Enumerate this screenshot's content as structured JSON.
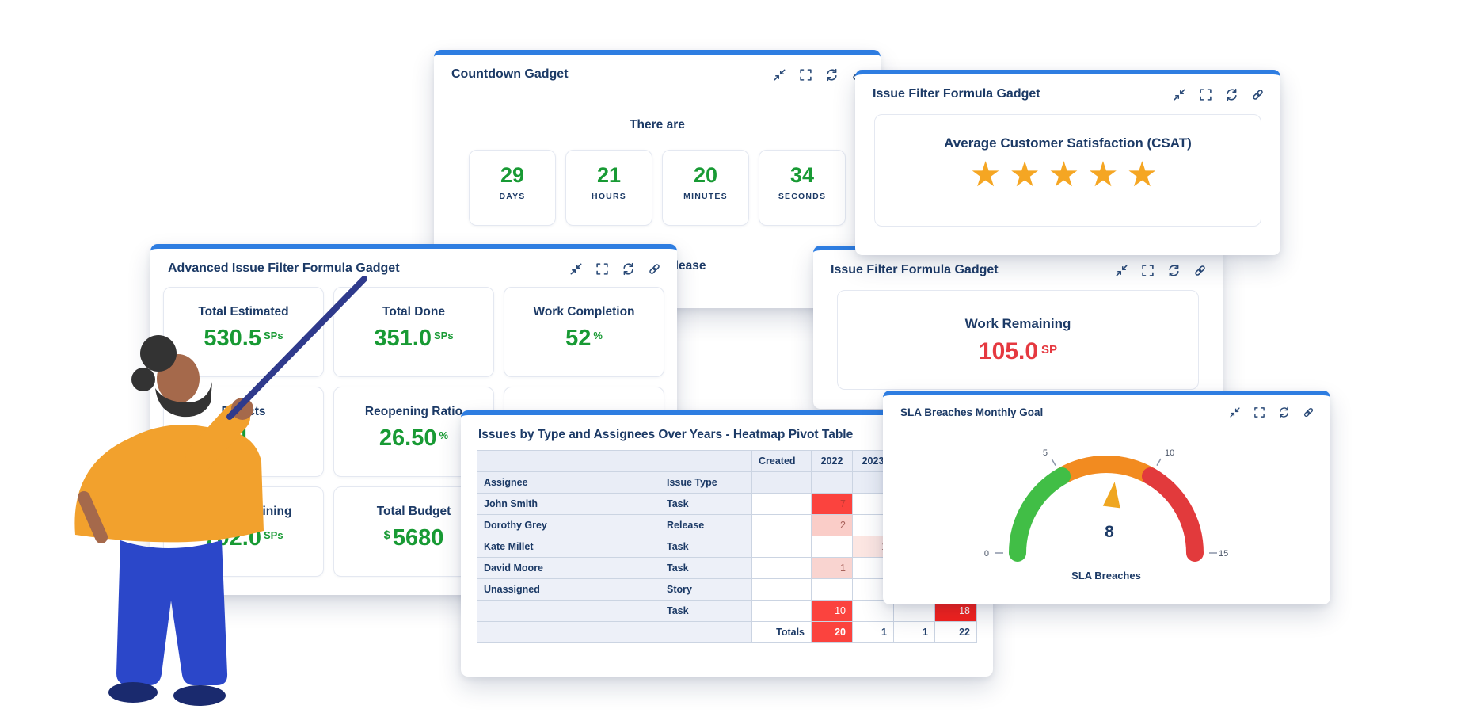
{
  "page": {
    "background": "#FFFFFF"
  },
  "colors": {
    "accent_blue": "#2E7DE1",
    "title_navy": "#1C3A66",
    "value_green": "#189A34",
    "value_red": "#E53940",
    "star_orange": "#F5A623"
  },
  "toolbar_icons": [
    "collapse-icon",
    "expand-icon",
    "refresh-icon",
    "link-icon"
  ],
  "countdown": {
    "title": "Countdown Gadget",
    "intro": "There are",
    "units": [
      {
        "value": "29",
        "label": "DAYS"
      },
      {
        "value": "21",
        "label": "HOURS"
      },
      {
        "value": "20",
        "label": "MINUTES"
      },
      {
        "value": "34",
        "label": "SECONDS"
      }
    ],
    "tail_fragment": "release"
  },
  "csat": {
    "title": "Issue Filter Formula Gadget",
    "metric": "Average Customer Satisfaction (CSAT)",
    "stars": 5
  },
  "advanced": {
    "title": "Advanced Issue Filter Formula Gadget",
    "tiles": [
      {
        "label": "Total Estimated",
        "value": "530.5",
        "unit": "SPs",
        "unit_pos": "suffix"
      },
      {
        "label": "Total Done",
        "value": "351.0",
        "unit": "SPs",
        "unit_pos": "suffix"
      },
      {
        "label": "Work Completion",
        "value": "52",
        "unit": "%",
        "unit_pos": "suffix"
      },
      {
        "label": "Defects",
        "value": "1",
        "unit": "",
        "unit_pos": "suffix"
      },
      {
        "label": "Reopening Ratio",
        "value": "26.50",
        "unit": "%",
        "unit_pos": "suffix"
      },
      {
        "label": "",
        "value": "",
        "unit": "",
        "unit_pos": "suffix"
      },
      {
        "label": "Work Remaining",
        "value": "702.0",
        "unit": "SPs",
        "unit_pos": "suffix"
      },
      {
        "label": "Total Budget",
        "value": "5680",
        "unit": "$",
        "unit_pos": "prefix"
      },
      {
        "label": "",
        "value": "",
        "unit": "",
        "unit_pos": "suffix"
      }
    ]
  },
  "work_remaining": {
    "title": "Issue Filter Formula Gadget",
    "metric": "Work Remaining",
    "value": "105.0",
    "unit": "SP"
  },
  "heatmap": {
    "title": "Issues by Type and Assignees Over Years - Heatmap Pivot Table",
    "chart_data": {
      "type": "heatmap",
      "corner_label": "Created",
      "row_headers": [
        "Assignee",
        "Issue Type"
      ],
      "col_headers": [
        "2022",
        "2023",
        "",
        ""
      ],
      "rows": [
        {
          "assignee": "John Smith",
          "issue_type": "Task",
          "created": "",
          "cells": [
            {
              "v": "7",
              "bg": "#FB433E",
              "fg": "#C23A34"
            },
            null,
            null,
            null
          ]
        },
        {
          "assignee": "Dorothy Grey",
          "issue_type": "Release",
          "created": "",
          "cells": [
            {
              "v": "2",
              "bg": "#FACDC8",
              "fg": "#A8625B"
            },
            null,
            null,
            null
          ]
        },
        {
          "assignee": "Kate Millet",
          "issue_type": "Task",
          "created": "",
          "cells": [
            null,
            {
              "v": "1",
              "bg": "#FCE6E2",
              "fg": "#A8827E"
            },
            null,
            null
          ]
        },
        {
          "assignee": "David Moore",
          "issue_type": "Task",
          "created": "",
          "cells": [
            {
              "v": "1",
              "bg": "#F9D4D0",
              "fg": "#A8625B"
            },
            null,
            null,
            null
          ]
        },
        {
          "assignee": "Unassigned",
          "issue_type": "Story",
          "created": "",
          "cells": [
            null,
            null,
            null,
            null
          ]
        },
        {
          "assignee": "",
          "issue_type": "Task",
          "created": "",
          "cells": [
            {
              "v": "10",
              "bg": "#FB433E",
              "fg": "#FFFFFF"
            },
            null,
            null,
            {
              "v": "18",
              "bg": "#F7211C",
              "fg": "#FFFFFF"
            }
          ]
        },
        {
          "assignee": "",
          "issue_type": "",
          "created": "Totals",
          "cells": [
            {
              "v": "20",
              "bg": "#FB433E",
              "fg": "#FFFFFF",
              "bold": true
            },
            {
              "v": "1",
              "bold": true
            },
            {
              "v": "1",
              "bold": true
            },
            {
              "v": "22",
              "bold": true
            }
          ]
        }
      ]
    }
  },
  "sla": {
    "title": "SLA Breaches Monthly Goal",
    "chart_data": {
      "type": "gauge",
      "min": 0,
      "max": 15,
      "value": 8,
      "ticks": [
        "0",
        "5",
        "10",
        "15"
      ],
      "segments": [
        {
          "from": 0,
          "to": 5,
          "color": "#41BE46"
        },
        {
          "from": 5,
          "to": 10,
          "color": "#F28B20"
        },
        {
          "from": 10,
          "to": 15,
          "color": "#E23A3C"
        }
      ],
      "needle_color": "#EFA620",
      "label": "SLA Breaches"
    }
  }
}
